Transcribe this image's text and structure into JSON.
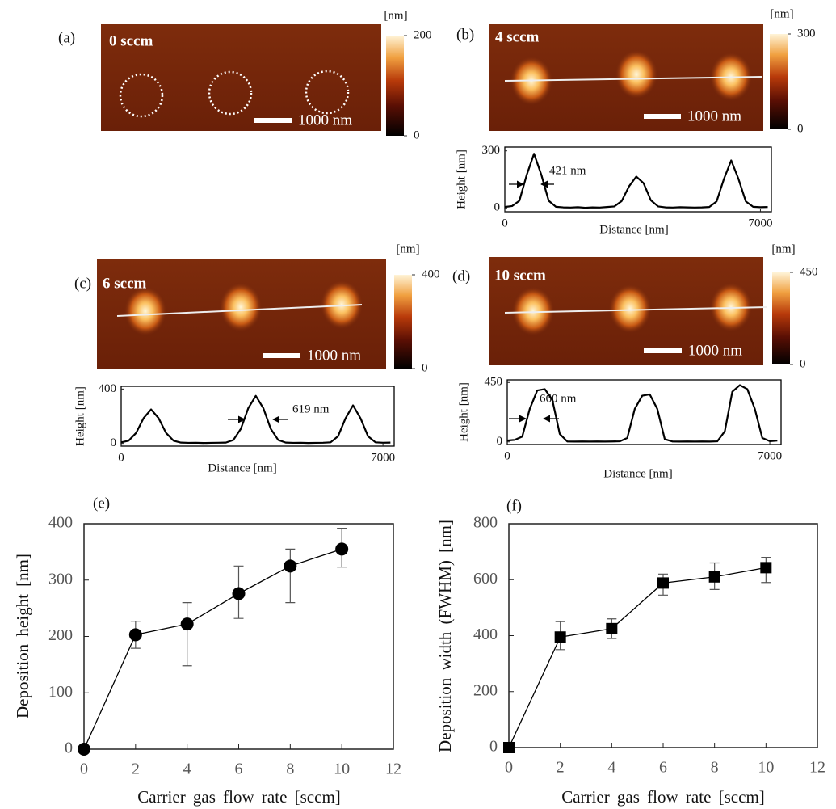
{
  "panels": [
    {
      "label": "(a)",
      "sample": "0 sccm",
      "scale_bar": "1000 nm",
      "colorbar_unit": "[nm]",
      "colorbar_lim": [
        0,
        200
      ],
      "colorbar_ticks": [
        0,
        200
      ]
    },
    {
      "label": "(b)",
      "sample": "4 sccm",
      "scale_bar": "1000 nm",
      "colorbar_unit": "[nm]",
      "colorbar_lim": [
        0,
        300
      ],
      "colorbar_ticks": [
        0,
        300
      ]
    },
    {
      "label": "(c)",
      "sample": "6 sccm",
      "scale_bar": "1000 nm",
      "colorbar_unit": "[nm]",
      "colorbar_lim": [
        0,
        400
      ],
      "colorbar_ticks": [
        0,
        400
      ]
    },
    {
      "label": "(d)",
      "sample": "10 sccm",
      "scale_bar": "1000 nm",
      "colorbar_unit": "[nm]",
      "colorbar_lim": [
        0,
        450
      ],
      "colorbar_ticks": [
        0,
        450
      ]
    }
  ],
  "chart_data": [
    {
      "type": "line",
      "xlabel": "Distance [nm]",
      "ylabel": "Height [nm]",
      "annotation": "421 nm",
      "color": "#000000",
      "xlim": [
        0,
        7300
      ],
      "xticks": [
        0,
        7000
      ],
      "ylim": [
        -20,
        320
      ],
      "yticks": [
        0,
        300
      ],
      "x": [
        0,
        200,
        400,
        600,
        800,
        1000,
        1200,
        1400,
        1600,
        1800,
        2000,
        2200,
        2400,
        2600,
        2800,
        3000,
        3200,
        3400,
        3600,
        3800,
        4000,
        4200,
        4400,
        4600,
        4800,
        5000,
        5200,
        5400,
        5600,
        5800,
        6000,
        6200,
        6400,
        6600,
        6800,
        7000,
        7200
      ],
      "values": [
        5,
        10,
        38,
        174,
        285,
        174,
        38,
        6,
        3,
        2,
        4,
        1,
        3,
        2,
        5,
        8,
        36,
        113,
        165,
        130,
        40,
        8,
        3,
        2,
        4,
        3,
        2,
        3,
        5,
        34,
        152,
        250,
        152,
        34,
        6,
        4,
        5
      ]
    },
    {
      "type": "line",
      "xlabel": "Distance [nm]",
      "ylabel": "Height [nm]",
      "annotation": "619 nm",
      "color": "#000000",
      "xlim": [
        0,
        7300
      ],
      "xticks": [
        0,
        7000
      ],
      "ylim": [
        -20,
        420
      ],
      "yticks": [
        0,
        400
      ],
      "x": [
        0,
        200,
        400,
        600,
        800,
        1000,
        1200,
        1400,
        1600,
        1800,
        2000,
        2200,
        2400,
        2600,
        2800,
        3000,
        3200,
        3400,
        3600,
        3800,
        4000,
        4200,
        4400,
        4600,
        4800,
        5000,
        5200,
        5400,
        5600,
        5800,
        6000,
        6200,
        6400,
        6600,
        6800,
        7000,
        7200
      ],
      "values": [
        8,
        20,
        77,
        186,
        250,
        186,
        77,
        20,
        6,
        4,
        5,
        3,
        4,
        5,
        6,
        25,
        107,
        260,
        350,
        260,
        107,
        25,
        6,
        4,
        5,
        3,
        4,
        5,
        8,
        53,
        185,
        280,
        185,
        53,
        8,
        5,
        6
      ]
    },
    {
      "type": "line",
      "xlabel": "Distance [nm]",
      "ylabel": "Height [nm]",
      "annotation": "660 nm",
      "color": "#000000",
      "xlim": [
        0,
        7300
      ],
      "xticks": [
        0,
        7000
      ],
      "ylim": [
        -20,
        470
      ],
      "yticks": [
        0,
        450
      ],
      "x": [
        0,
        200,
        400,
        600,
        800,
        1000,
        1200,
        1400,
        1600,
        1800,
        2000,
        2200,
        2400,
        2600,
        2800,
        3000,
        3200,
        3400,
        3600,
        3800,
        4000,
        4200,
        4400,
        4600,
        4800,
        5000,
        5200,
        5400,
        5600,
        5800,
        6000,
        6200,
        6400,
        6600,
        6800,
        7000,
        7200
      ],
      "values": [
        10,
        15,
        40,
        250,
        390,
        400,
        320,
        60,
        3,
        2,
        3,
        2,
        3,
        2,
        3,
        4,
        30,
        250,
        350,
        360,
        250,
        20,
        3,
        2,
        3,
        2,
        3,
        2,
        4,
        80,
        380,
        430,
        400,
        250,
        30,
        5,
        10
      ]
    },
    {
      "type": "line",
      "label": "(e)",
      "xlabel": "Carrier gas flow rate [sccm]",
      "ylabel": "Deposition height [nm]",
      "marker": "circle",
      "color": "#000000",
      "xlim": [
        0,
        12
      ],
      "xticks": [
        0,
        2,
        4,
        6,
        8,
        10,
        12
      ],
      "ylim": [
        0,
        400
      ],
      "yticks": [
        0,
        100,
        200,
        300,
        400
      ],
      "x": [
        0,
        2,
        4,
        6,
        8,
        10
      ],
      "values": [
        0,
        203,
        222,
        276,
        325,
        355
      ],
      "error_minus": [
        null,
        24,
        74,
        44,
        65,
        32
      ],
      "error_plus": [
        null,
        24,
        38,
        49,
        30,
        37
      ]
    },
    {
      "type": "line",
      "label": "(f)",
      "xlabel": "Carrier gas flow rate [sccm]",
      "ylabel": "Deposition width (FWHM) [nm]",
      "marker": "square",
      "color": "#000000",
      "xlim": [
        0,
        12
      ],
      "xticks": [
        0,
        2,
        4,
        6,
        8,
        10,
        12
      ],
      "ylim": [
        0,
        800
      ],
      "yticks": [
        0,
        200,
        400,
        600,
        800
      ],
      "x": [
        0,
        2,
        4,
        6,
        8,
        10
      ],
      "values": [
        0,
        395,
        425,
        588,
        610,
        643
      ],
      "error_minus": [
        null,
        45,
        35,
        43,
        45,
        53
      ],
      "error_plus": [
        null,
        55,
        35,
        32,
        50,
        37
      ]
    }
  ]
}
